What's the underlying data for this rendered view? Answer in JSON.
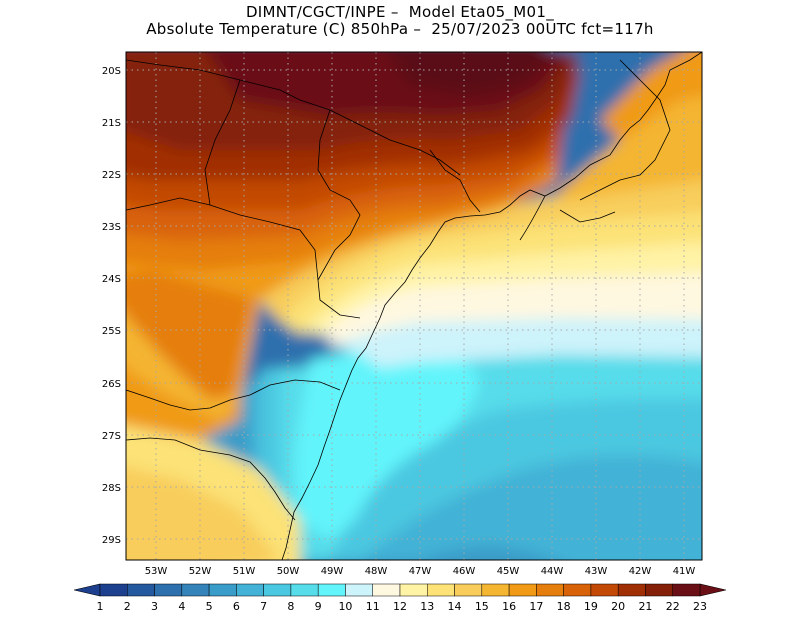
{
  "title": {
    "line1": "DIMNT/CGCT/INPE –  Model Eta05_M01_",
    "line2": "Absolute Temperature (C) 850hPa –  25/07/2023 00UTC fct=117h"
  },
  "map": {
    "lat_labels": [
      "20S",
      "21S",
      "22S",
      "23S",
      "24S",
      "25S",
      "26S",
      "27S",
      "28S",
      "29S"
    ],
    "lon_labels": [
      "53W",
      "52W",
      "51W",
      "50W",
      "49W",
      "48W",
      "47W",
      "46W",
      "45W",
      "44W",
      "43W",
      "42W",
      "41W"
    ]
  },
  "colorbar": {
    "labels": [
      "1",
      "2",
      "3",
      "4",
      "5",
      "6",
      "7",
      "8",
      "9",
      "10",
      "11",
      "12",
      "13",
      "14",
      "15",
      "16",
      "17",
      "18",
      "19",
      "20",
      "21",
      "22",
      "23"
    ],
    "colors": [
      "#1c3f8e",
      "#25599f",
      "#2e6fad",
      "#3484ba",
      "#3a9cc8",
      "#43b2d6",
      "#4bc8e1",
      "#57dcea",
      "#62f4fb",
      "#cdf3fb",
      "#fff8e0",
      "#fff3a6",
      "#fce277",
      "#f8cd5c",
      "#f4b531",
      "#f09a16",
      "#e57e0c",
      "#d86208",
      "#c24906",
      "#a12f06",
      "#842008",
      "#6b0f17"
    ],
    "low_color": "#1c3f8e",
    "high_color": "#6b0f17"
  }
}
